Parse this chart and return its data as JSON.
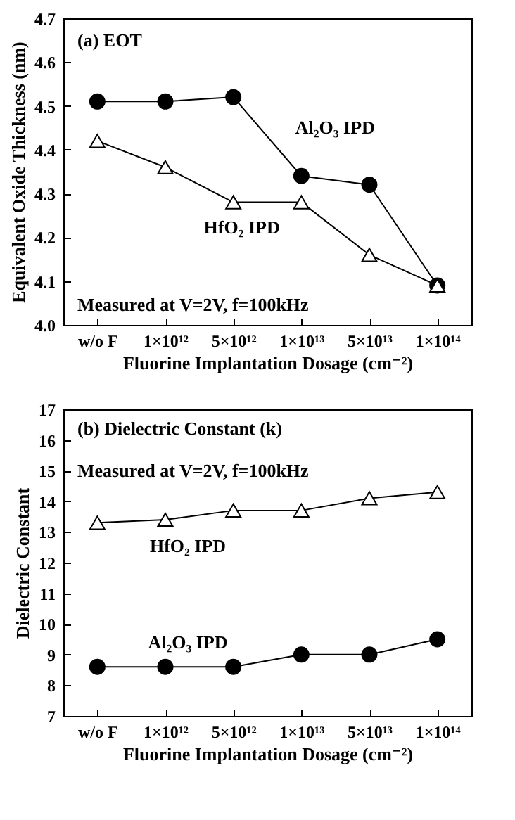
{
  "chart_data": [
    {
      "type": "line",
      "xlabel": "Fluorine Implantation Dosage (cm⁻²)",
      "ylabel": "Equivalent Oxide Thickness (nm)",
      "categories": [
        "w/o F",
        "1×10¹²",
        "5×10¹²",
        "1×10¹³",
        "5×10¹³",
        "1×10¹⁴"
      ],
      "series": [
        {
          "name": "Al₂O₃ IPD",
          "color": "#000000",
          "marker": "circle",
          "values": [
            4.51,
            4.51,
            4.52,
            4.34,
            4.32,
            4.09
          ]
        },
        {
          "name": "HfO₂ IPD",
          "color": "#000000",
          "marker": "triangle",
          "values": [
            4.42,
            4.36,
            4.28,
            4.28,
            4.16,
            4.09
          ]
        }
      ],
      "ylim": [
        4.0,
        4.7
      ],
      "yticks": [
        {
          "value": 4,
          "label": "4.0"
        },
        4.1,
        4.2,
        4.3,
        4.4,
        4.5,
        4.6,
        4.7
      ],
      "annotations": [
        "(a) EOT",
        "Measured at V=2V, f=100kHz"
      ]
    },
    {
      "type": "line",
      "xlabel": "Fluorine Implantation Dosage (cm⁻²)",
      "ylabel": "Dielectric Constant",
      "categories": [
        "w/o F",
        "1×10¹²",
        "5×10¹²",
        "1×10¹³",
        "5×10¹³",
        "1×10¹⁴"
      ],
      "series": [
        {
          "name": "HfO₂ IPD",
          "color": "#000000",
          "marker": "triangle",
          "values": [
            13.3,
            13.4,
            13.7,
            13.7,
            14.1,
            14.3
          ]
        },
        {
          "name": "Al₂O₃ IPD",
          "color": "#000000",
          "marker": "circle",
          "values": [
            8.6,
            8.6,
            8.6,
            9.0,
            9.0,
            9.5
          ]
        }
      ],
      "ylim": [
        7,
        17
      ],
      "yticks": [
        7,
        8,
        9,
        10,
        11,
        12,
        13,
        14,
        15,
        16,
        17
      ],
      "annotations": [
        "(b) Dielectric Constant (k)",
        "Measured at V=2V, f=100kHz"
      ]
    }
  ]
}
